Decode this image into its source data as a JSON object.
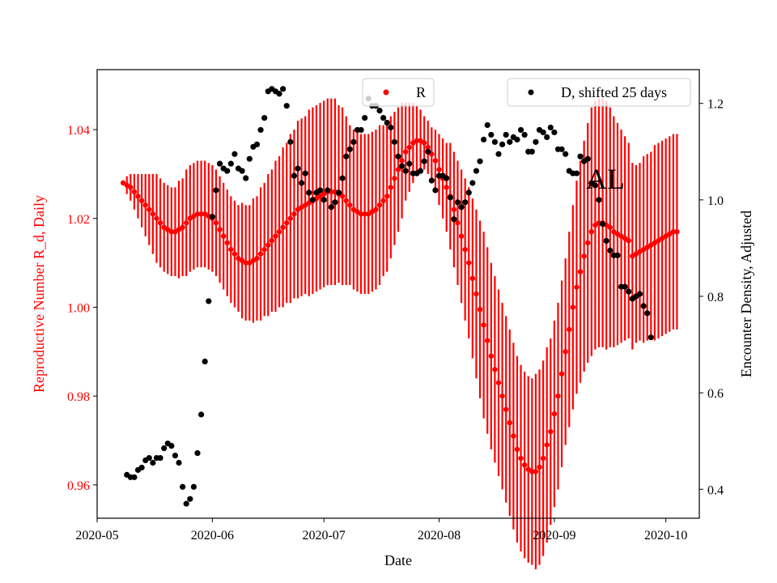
{
  "chart_data": {
    "type": "scatter",
    "annotation": "AL",
    "x_axis": {
      "label": "Date",
      "range": [
        "2020-05-01",
        "2020-10-10"
      ],
      "ticks": [
        "2020-05-01",
        "2020-06-01",
        "2020-07-01",
        "2020-08-01",
        "2020-09-01",
        "2020-10-01"
      ],
      "tick_labels": [
        "2020-05",
        "2020-06",
        "2020-07",
        "2020-08",
        "2020-09",
        "2020-10"
      ]
    },
    "y_left": {
      "label": "Reproductive Number R_d, Daily",
      "range": [
        0.9525,
        1.0535
      ],
      "ticks": [
        0.96,
        0.98,
        1.0,
        1.02,
        1.04
      ],
      "tick_labels": [
        "0.96",
        "0.98",
        "1.00",
        "1.02",
        "1.04"
      ],
      "color": "#ff0000"
    },
    "y_right": {
      "label": "Encounter Density, Adjusted",
      "range": [
        0.34,
        1.27
      ],
      "ticks": [
        0.4,
        0.6,
        0.8,
        1.0,
        1.2
      ],
      "tick_labels": [
        "0.4",
        "0.6",
        "0.8",
        "1.0",
        "1.2"
      ],
      "color": "#000000"
    },
    "legend": {
      "r_label": "R",
      "d_label": "D, shifted 25 days",
      "r_position": "top-center",
      "d_position": "top-right"
    },
    "series": [
      {
        "name": "R",
        "axis": "left",
        "color": "#ff0000",
        "style": "points with vertical error bars",
        "start_date": "2020-05-08",
        "step_days": 1,
        "values": [
          1.028,
          1.0275,
          1.027,
          1.026,
          1.025,
          1.024,
          1.023,
          1.022,
          1.021,
          1.02,
          1.019,
          1.018,
          1.0175,
          1.017,
          1.017,
          1.0175,
          1.018,
          1.019,
          1.02,
          1.0205,
          1.021,
          1.021,
          1.021,
          1.0205,
          1.02,
          1.019,
          1.0175,
          1.016,
          1.0145,
          1.013,
          1.012,
          1.011,
          1.0105,
          1.01,
          1.01,
          1.0105,
          1.011,
          1.012,
          1.013,
          1.014,
          1.015,
          1.016,
          1.017,
          1.018,
          1.019,
          1.02,
          1.021,
          1.022,
          1.0225,
          1.023,
          1.0235,
          1.024,
          1.0245,
          1.025,
          1.0255,
          1.026,
          1.026,
          1.026,
          1.0255,
          1.025,
          1.024,
          1.023,
          1.022,
          1.0215,
          1.021,
          1.021,
          1.021,
          1.0215,
          1.022,
          1.023,
          1.024,
          1.025,
          1.027,
          1.029,
          1.031,
          1.033,
          1.035,
          1.036,
          1.037,
          1.0375,
          1.0375,
          1.037,
          1.036,
          1.0345,
          1.033,
          1.031,
          1.029,
          1.027,
          1.025,
          1.022,
          1.019,
          1.016,
          1.013,
          1.01,
          1.0065,
          1.003,
          0.9995,
          0.996,
          0.9925,
          0.989,
          0.986,
          0.983,
          0.98,
          0.977,
          0.974,
          0.971,
          0.968,
          0.966,
          0.9645,
          0.9635,
          0.963,
          0.963,
          0.964,
          0.966,
          0.969,
          0.972,
          0.976,
          0.98,
          0.985,
          0.99,
          0.995,
          1.0,
          1.0045,
          1.008,
          1.0115,
          1.0145,
          1.017,
          1.0185,
          1.019,
          1.019,
          1.0185,
          1.018,
          1.017,
          1.0165,
          1.016,
          1.0155,
          1.015,
          1.0115,
          1.012,
          1.0125,
          1.013,
          1.0135,
          1.014,
          1.0145,
          1.015,
          1.0155,
          1.016,
          1.0165,
          1.017,
          1.017
        ],
        "error_halfwidth": [
          0,
          0.002,
          0.003,
          0.004,
          0.005,
          0.006,
          0.007,
          0.008,
          0.009,
          0.01,
          0.01,
          0.01,
          0.01,
          0.01,
          0.01,
          0.011,
          0.011,
          0.012,
          0.012,
          0.012,
          0.012,
          0.012,
          0.012,
          0.012,
          0.012,
          0.012,
          0.012,
          0.012,
          0.012,
          0.012,
          0.012,
          0.012,
          0.013,
          0.013,
          0.013,
          0.014,
          0.014,
          0.015,
          0.015,
          0.016,
          0.016,
          0.017,
          0.017,
          0.018,
          0.018,
          0.019,
          0.019,
          0.02,
          0.02,
          0.02,
          0.021,
          0.021,
          0.021,
          0.021,
          0.021,
          0.021,
          0.021,
          0.021,
          0.02,
          0.02,
          0.019,
          0.018,
          0.018,
          0.018,
          0.018,
          0.018,
          0.018,
          0.018,
          0.018,
          0.018,
          0.017,
          0.017,
          0.016,
          0.015,
          0.014,
          0.013,
          0.011,
          0.01,
          0.009,
          0.008,
          0.007,
          0.006,
          0.006,
          0.006,
          0.007,
          0.008,
          0.009,
          0.01,
          0.012,
          0.013,
          0.014,
          0.015,
          0.016,
          0.017,
          0.018,
          0.019,
          0.02,
          0.021,
          0.021,
          0.021,
          0.021,
          0.021,
          0.021,
          0.021,
          0.021,
          0.021,
          0.021,
          0.021,
          0.021,
          0.021,
          0.021,
          0.022,
          0.022,
          0.022,
          0.022,
          0.021,
          0.021,
          0.021,
          0.021,
          0.021,
          0.022,
          0.023,
          0.024,
          0.025,
          0.026,
          0.027,
          0.028,
          0.028,
          0.028,
          0.028,
          0.028,
          0.027,
          0.026,
          0.025,
          0.024,
          0.023,
          0.022,
          0.021,
          0.02,
          0.02,
          0.021,
          0.021,
          0.021,
          0.022,
          0.022,
          0.022,
          0.022,
          0.022,
          0.022,
          0.022
        ]
      },
      {
        "name": "D, shifted 25 days",
        "axis": "right",
        "color": "#000000",
        "style": "points",
        "points": [
          [
            "2020-05-09",
            0.43
          ],
          [
            "2020-05-10",
            0.425
          ],
          [
            "2020-05-11",
            0.425
          ],
          [
            "2020-05-12",
            0.44
          ],
          [
            "2020-05-13",
            0.445
          ],
          [
            "2020-05-14",
            0.46
          ],
          [
            "2020-05-15",
            0.465
          ],
          [
            "2020-05-16",
            0.455
          ],
          [
            "2020-05-17",
            0.465
          ],
          [
            "2020-05-18",
            0.465
          ],
          [
            "2020-05-19",
            0.485
          ],
          [
            "2020-05-20",
            0.495
          ],
          [
            "2020-05-21",
            0.49
          ],
          [
            "2020-05-22",
            0.47
          ],
          [
            "2020-05-23",
            0.455
          ],
          [
            "2020-05-24",
            0.405
          ],
          [
            "2020-05-25",
            0.37
          ],
          [
            "2020-05-26",
            0.38
          ],
          [
            "2020-05-27",
            0.405
          ],
          [
            "2020-05-28",
            0.475
          ],
          [
            "2020-05-29",
            0.555
          ],
          [
            "2020-05-30",
            0.665
          ],
          [
            "2020-05-31",
            0.79
          ],
          [
            "2020-06-01",
            0.965
          ],
          [
            "2020-06-02",
            1.02
          ],
          [
            "2020-06-03",
            1.075
          ],
          [
            "2020-06-04",
            1.065
          ],
          [
            "2020-06-05",
            1.06
          ],
          [
            "2020-06-06",
            1.075
          ],
          [
            "2020-06-07",
            1.095
          ],
          [
            "2020-06-08",
            1.065
          ],
          [
            "2020-06-09",
            1.06
          ],
          [
            "2020-06-10",
            1.045
          ],
          [
            "2020-06-11",
            1.085
          ],
          [
            "2020-06-12",
            1.11
          ],
          [
            "2020-06-13",
            1.115
          ],
          [
            "2020-06-14",
            1.145
          ],
          [
            "2020-06-15",
            1.17
          ],
          [
            "2020-06-16",
            1.225
          ],
          [
            "2020-06-17",
            1.23
          ],
          [
            "2020-06-18",
            1.225
          ],
          [
            "2020-06-19",
            1.22
          ],
          [
            "2020-06-20",
            1.23
          ],
          [
            "2020-06-21",
            1.195
          ],
          [
            "2020-06-22",
            1.12
          ],
          [
            "2020-06-23",
            1.05
          ],
          [
            "2020-06-24",
            1.065
          ],
          [
            "2020-06-25",
            1.035
          ],
          [
            "2020-06-26",
            1.055
          ],
          [
            "2020-06-27",
            1.015
          ],
          [
            "2020-06-28",
            1.0
          ],
          [
            "2020-06-29",
            1.015
          ],
          [
            "2020-06-30",
            1.02
          ],
          [
            "2020-07-01",
            1.0
          ],
          [
            "2020-07-02",
            1.02
          ],
          [
            "2020-07-03",
            0.985
          ],
          [
            "2020-07-04",
            0.995
          ],
          [
            "2020-07-05",
            1.015
          ],
          [
            "2020-07-06",
            1.045
          ],
          [
            "2020-07-07",
            1.09
          ],
          [
            "2020-07-08",
            1.105
          ],
          [
            "2020-07-09",
            1.12
          ],
          [
            "2020-07-10",
            1.145
          ],
          [
            "2020-07-11",
            1.145
          ],
          [
            "2020-07-12",
            1.17
          ],
          [
            "2020-07-13",
            1.21
          ],
          [
            "2020-07-14",
            1.195
          ],
          [
            "2020-07-15",
            1.195
          ],
          [
            "2020-07-16",
            1.185
          ],
          [
            "2020-07-17",
            1.17
          ],
          [
            "2020-07-18",
            1.16
          ],
          [
            "2020-07-19",
            1.15
          ],
          [
            "2020-07-20",
            1.12
          ],
          [
            "2020-07-21",
            1.09
          ],
          [
            "2020-07-22",
            1.07
          ],
          [
            "2020-07-23",
            1.06
          ],
          [
            "2020-07-24",
            1.075
          ],
          [
            "2020-07-25",
            1.055
          ],
          [
            "2020-07-26",
            1.055
          ],
          [
            "2020-07-27",
            1.06
          ],
          [
            "2020-07-28",
            1.08
          ],
          [
            "2020-07-29",
            1.1
          ],
          [
            "2020-07-30",
            1.04
          ],
          [
            "2020-07-31",
            1.02
          ],
          [
            "2020-08-01",
            1.05
          ],
          [
            "2020-08-02",
            1.05
          ],
          [
            "2020-08-03",
            1.045
          ],
          [
            "2020-08-04",
            1.005
          ],
          [
            "2020-08-05",
            0.96
          ],
          [
            "2020-08-06",
            0.995
          ],
          [
            "2020-08-07",
            0.985
          ],
          [
            "2020-08-08",
            0.995
          ],
          [
            "2020-08-09",
            1.015
          ],
          [
            "2020-08-10",
            1.035
          ],
          [
            "2020-08-11",
            1.06
          ],
          [
            "2020-08-12",
            1.08
          ],
          [
            "2020-08-13",
            1.125
          ],
          [
            "2020-08-14",
            1.155
          ],
          [
            "2020-08-15",
            1.135
          ],
          [
            "2020-08-16",
            1.12
          ],
          [
            "2020-08-17",
            1.095
          ],
          [
            "2020-08-18",
            1.115
          ],
          [
            "2020-08-19",
            1.135
          ],
          [
            "2020-08-20",
            1.12
          ],
          [
            "2020-08-21",
            1.13
          ],
          [
            "2020-08-22",
            1.125
          ],
          [
            "2020-08-23",
            1.145
          ],
          [
            "2020-08-24",
            1.135
          ],
          [
            "2020-08-25",
            1.1
          ],
          [
            "2020-08-26",
            1.1
          ],
          [
            "2020-08-27",
            1.12
          ],
          [
            "2020-08-28",
            1.145
          ],
          [
            "2020-08-29",
            1.14
          ],
          [
            "2020-08-30",
            1.13
          ],
          [
            "2020-08-31",
            1.15
          ],
          [
            "2020-09-01",
            1.14
          ],
          [
            "2020-09-02",
            1.105
          ],
          [
            "2020-09-03",
            1.105
          ],
          [
            "2020-09-04",
            1.095
          ],
          [
            "2020-09-05",
            1.06
          ],
          [
            "2020-09-06",
            1.055
          ],
          [
            "2020-09-07",
            1.055
          ],
          [
            "2020-09-08",
            1.09
          ],
          [
            "2020-09-09",
            1.08
          ],
          [
            "2020-09-10",
            1.085
          ],
          [
            "2020-09-11",
            1.035
          ],
          [
            "2020-09-12",
            1.03
          ],
          [
            "2020-09-13",
            1.0
          ],
          [
            "2020-09-14",
            0.95
          ],
          [
            "2020-09-15",
            0.915
          ],
          [
            "2020-09-16",
            0.895
          ],
          [
            "2020-09-17",
            0.885
          ],
          [
            "2020-09-18",
            0.885
          ],
          [
            "2020-09-19",
            0.82
          ],
          [
            "2020-09-20",
            0.82
          ],
          [
            "2020-09-21",
            0.81
          ],
          [
            "2020-09-22",
            0.795
          ],
          [
            "2020-09-23",
            0.8
          ],
          [
            "2020-09-24",
            0.805
          ],
          [
            "2020-09-25",
            0.78
          ],
          [
            "2020-09-26",
            0.765
          ],
          [
            "2020-09-27",
            0.715
          ]
        ]
      }
    ],
    "grid": false
  }
}
